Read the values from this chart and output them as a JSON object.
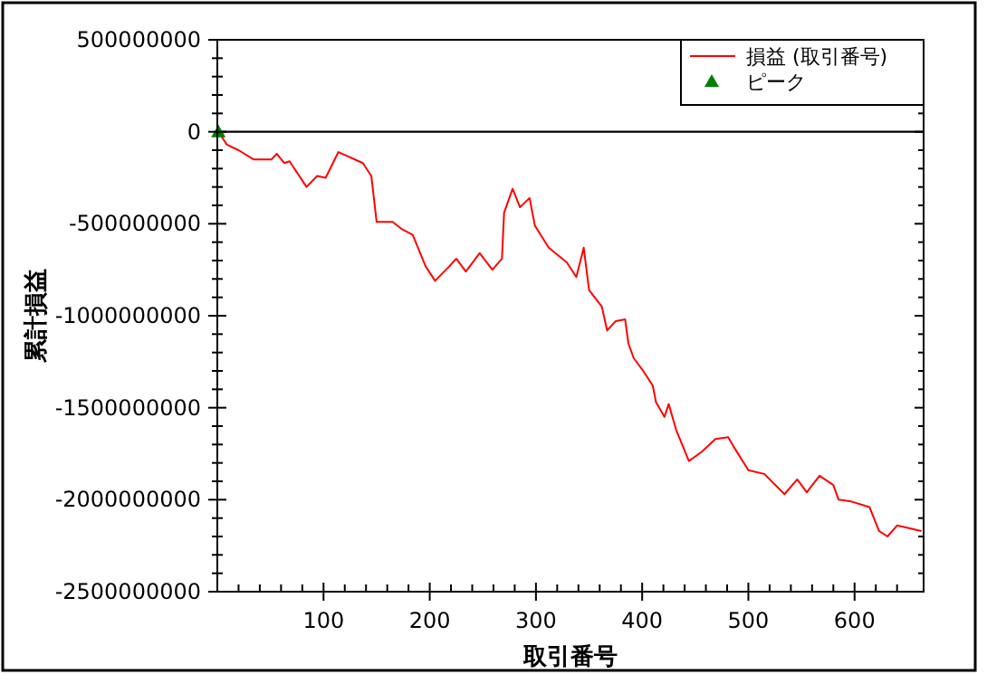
{
  "chart_data": {
    "type": "line",
    "xlabel": "取引番号",
    "ylabel": "累計損益",
    "xlim": [
      0,
      665
    ],
    "ylim": [
      -2500000000,
      500000000
    ],
    "xticks": [
      {
        "value": 20,
        "label": null
      },
      {
        "value": 40,
        "label": null
      },
      {
        "value": 60,
        "label": null
      },
      {
        "value": 80,
        "label": null
      },
      100,
      {
        "value": 120,
        "label": null
      },
      {
        "value": 140,
        "label": null
      },
      {
        "value": 160,
        "label": null
      },
      {
        "value": 180,
        "label": null
      },
      200,
      {
        "value": 220,
        "label": null
      },
      {
        "value": 240,
        "label": null
      },
      {
        "value": 260,
        "label": null
      },
      {
        "value": 280,
        "label": null
      },
      300,
      {
        "value": 320,
        "label": null
      },
      {
        "value": 340,
        "label": null
      },
      {
        "value": 360,
        "label": null
      },
      {
        "value": 380,
        "label": null
      },
      400,
      {
        "value": 420,
        "label": null
      },
      {
        "value": 440,
        "label": null
      },
      {
        "value": 460,
        "label": null
      },
      {
        "value": 480,
        "label": null
      },
      500,
      {
        "value": 520,
        "label": null
      },
      {
        "value": 540,
        "label": null
      },
      {
        "value": 560,
        "label": null
      },
      {
        "value": 580,
        "label": null
      },
      600,
      {
        "value": 620,
        "label": null
      },
      {
        "value": 640,
        "label": null
      }
    ],
    "yticks": [
      -2500000000,
      {
        "value": -2400000000,
        "label": null
      },
      {
        "value": -2300000000,
        "label": null
      },
      {
        "value": -2200000000,
        "label": null
      },
      {
        "value": -2100000000,
        "label": null
      },
      -2000000000,
      {
        "value": -1900000000,
        "label": null
      },
      {
        "value": -1800000000,
        "label": null
      },
      {
        "value": -1700000000,
        "label": null
      },
      {
        "value": -1600000000,
        "label": null
      },
      -1500000000,
      {
        "value": -1400000000,
        "label": null
      },
      {
        "value": -1300000000,
        "label": null
      },
      {
        "value": -1200000000,
        "label": null
      },
      {
        "value": -1100000000,
        "label": null
      },
      -1000000000,
      {
        "value": -900000000,
        "label": null
      },
      {
        "value": -800000000,
        "label": null
      },
      {
        "value": -700000000,
        "label": null
      },
      {
        "value": -600000000,
        "label": null
      },
      -500000000,
      {
        "value": -400000000,
        "label": null
      },
      {
        "value": -300000000,
        "label": null
      },
      {
        "value": -200000000,
        "label": null
      },
      {
        "value": -100000000,
        "label": null
      },
      0,
      {
        "value": 100000000,
        "label": null
      },
      {
        "value": 200000000,
        "label": null
      },
      {
        "value": 300000000,
        "label": null
      },
      {
        "value": 400000000,
        "label": null
      },
      500000000
    ],
    "series": [
      {
        "name": "損益 (取引番号)",
        "color": "#ff0000",
        "x": [
          1,
          9,
          20,
          34,
          51,
          56,
          63,
          68,
          84,
          94,
          102,
          114,
          137,
          145,
          150,
          165,
          174,
          184,
          196,
          205,
          217,
          225,
          234,
          247,
          259,
          268,
          270,
          278,
          285,
          294,
          299,
          312,
          329,
          338,
          345,
          350,
          362,
          367,
          375,
          384,
          387,
          392,
          401,
          410,
          413,
          421,
          425,
          432,
          444,
          456,
          469,
          481,
          486,
          500,
          515,
          534,
          546,
          555,
          567,
          580,
          585,
          597,
          614,
          623,
          631,
          640,
          663
        ],
        "values": [
          0,
          -70000000,
          -100000000,
          -150000000,
          -150000000,
          -120000000,
          -170000000,
          -160000000,
          -300000000,
          -240000000,
          -250000000,
          -110000000,
          -170000000,
          -240000000,
          -490000000,
          -490000000,
          -530000000,
          -560000000,
          -730000000,
          -810000000,
          -740000000,
          -690000000,
          -760000000,
          -660000000,
          -750000000,
          -690000000,
          -440000000,
          -310000000,
          -410000000,
          -360000000,
          -510000000,
          -630000000,
          -710000000,
          -790000000,
          -630000000,
          -860000000,
          -950000000,
          -1080000000,
          -1030000000,
          -1020000000,
          -1150000000,
          -1230000000,
          -1300000000,
          -1380000000,
          -1470000000,
          -1550000000,
          -1480000000,
          -1620000000,
          -1790000000,
          -1740000000,
          -1670000000,
          -1660000000,
          -1710000000,
          -1840000000,
          -1860000000,
          -1970000000,
          -1890000000,
          -1960000000,
          -1870000000,
          -1920000000,
          -2000000000,
          -2010000000,
          -2040000000,
          -2170000000,
          -2200000000,
          -2140000000,
          -2170000000
        ]
      },
      {
        "name": "ピーク",
        "type": "scatter",
        "marker": "triangle",
        "color": "#008000",
        "x": [
          1
        ],
        "values": [
          0
        ]
      }
    ],
    "ref_lines": [
      {
        "axis": "y",
        "value": 0,
        "color": "#000000"
      }
    ],
    "legend": "top right"
  }
}
